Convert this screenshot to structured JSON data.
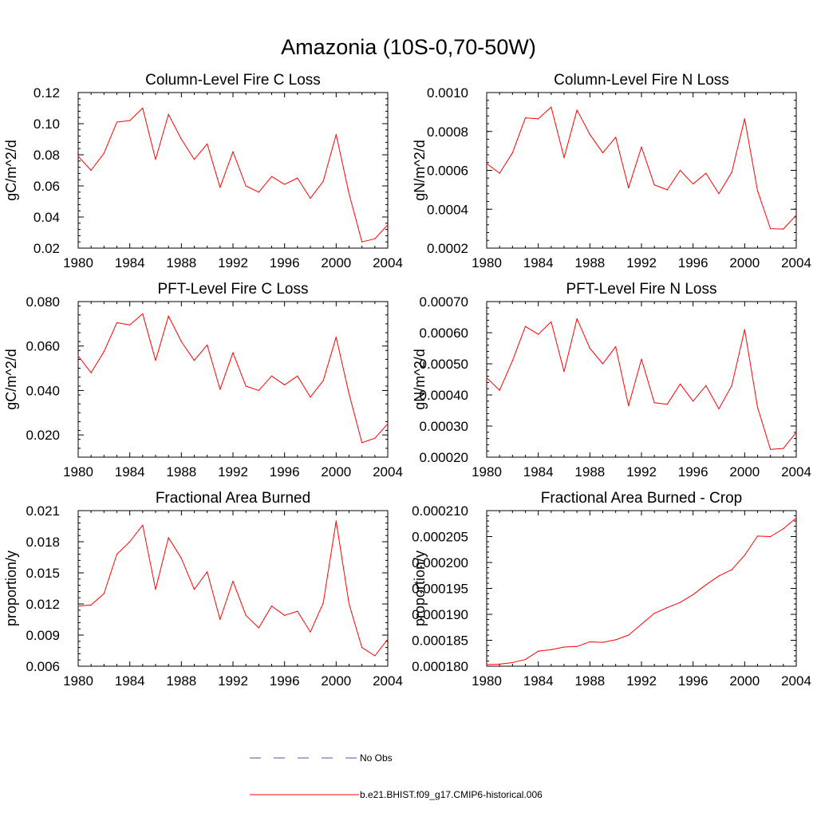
{
  "page": {
    "title": "Amazonia (10S-0,70-50W)"
  },
  "legend": [
    {
      "label": "No Obs",
      "style": "dashed",
      "color": "#4a5aa8"
    },
    {
      "label": "b.e21.BHIST.f09_g17.CMIP6-historical.006",
      "style": "solid",
      "color": "#ff0000"
    }
  ],
  "chart_data": [
    {
      "type": "line",
      "title": "Column-Level Fire C Loss",
      "xlabel": "",
      "ylabel": "gC/m^2/d",
      "xlim": [
        1980,
        2004
      ],
      "ylim": [
        0.02,
        0.12
      ],
      "xticks": [
        1980,
        1984,
        1988,
        1992,
        1996,
        2000,
        2004
      ],
      "yticks": [
        0.02,
        0.04,
        0.06,
        0.08,
        0.1,
        0.12
      ],
      "yticklabels": [
        "0.02",
        "0.04",
        "0.06",
        "0.08",
        "0.10",
        "0.12"
      ],
      "x": [
        1980,
        1981,
        1982,
        1983,
        1984,
        1985,
        1986,
        1987,
        1988,
        1989,
        1990,
        1991,
        1992,
        1993,
        1994,
        1995,
        1996,
        1997,
        1998,
        1999,
        2000,
        2001,
        2002,
        2003,
        2004
      ],
      "series": [
        {
          "name": "b.e21.BHIST.f09_g17.CMIP6-historical.006",
          "color": "#ff0000",
          "values": [
            0.079,
            0.07,
            0.081,
            0.101,
            0.102,
            0.11,
            0.077,
            0.106,
            0.09,
            0.077,
            0.087,
            0.059,
            0.082,
            0.06,
            0.056,
            0.066,
            0.061,
            0.065,
            0.052,
            0.063,
            0.093,
            0.055,
            0.024,
            0.026,
            0.035
          ]
        }
      ]
    },
    {
      "type": "line",
      "title": "Column-Level Fire N Loss",
      "xlabel": "",
      "ylabel": "gN/m^2/d",
      "xlim": [
        1980,
        2004
      ],
      "ylim": [
        0.0002,
        0.001
      ],
      "xticks": [
        1980,
        1984,
        1988,
        1992,
        1996,
        2000,
        2004
      ],
      "yticks": [
        0.0002,
        0.0004,
        0.0006,
        0.0008,
        0.001
      ],
      "yticklabels": [
        "0.0002",
        "0.0004",
        "0.0006",
        "0.0008",
        "0.0010"
      ],
      "x": [
        1980,
        1981,
        1982,
        1983,
        1984,
        1985,
        1986,
        1987,
        1988,
        1989,
        1990,
        1991,
        1992,
        1993,
        1994,
        1995,
        1996,
        1997,
        1998,
        1999,
        2000,
        2001,
        2002,
        2003,
        2004
      ],
      "series": [
        {
          "name": "b.e21.BHIST.f09_g17.CMIP6-historical.006",
          "color": "#ff0000",
          "values": [
            0.000635,
            0.000585,
            0.00069,
            0.00087,
            0.000865,
            0.000925,
            0.000665,
            0.00091,
            0.000785,
            0.00069,
            0.00077,
            0.00051,
            0.00072,
            0.000525,
            0.0005,
            0.0006,
            0.00053,
            0.000585,
            0.00048,
            0.00059,
            0.000865,
            0.000495,
            0.0003,
            0.000298,
            0.00037
          ]
        }
      ]
    },
    {
      "type": "line",
      "title": "PFT-Level Fire C Loss",
      "xlabel": "",
      "ylabel": "gC/m^2/d",
      "xlim": [
        1980,
        2004
      ],
      "ylim": [
        0.01,
        0.08
      ],
      "xticks": [
        1980,
        1984,
        1988,
        1992,
        1996,
        2000,
        2004
      ],
      "yticks": [
        0.02,
        0.04,
        0.06,
        0.08
      ],
      "yticklabels": [
        "0.020",
        "0.040",
        "0.060",
        "0.080"
      ],
      "x": [
        1980,
        1981,
        1982,
        1983,
        1984,
        1985,
        1986,
        1987,
        1988,
        1989,
        1990,
        1991,
        1992,
        1993,
        1994,
        1995,
        1996,
        1997,
        1998,
        1999,
        2000,
        2001,
        2002,
        2003,
        2004
      ],
      "series": [
        {
          "name": "b.e21.BHIST.f09_g17.CMIP6-historical.006",
          "color": "#ff0000",
          "values": [
            0.0555,
            0.048,
            0.0575,
            0.0705,
            0.0695,
            0.0745,
            0.0535,
            0.0735,
            0.062,
            0.0535,
            0.0605,
            0.0405,
            0.057,
            0.042,
            0.04,
            0.0465,
            0.0425,
            0.0465,
            0.037,
            0.0445,
            0.064,
            0.0385,
            0.0165,
            0.0185,
            0.025
          ]
        }
      ]
    },
    {
      "type": "line",
      "title": "PFT-Level Fire N Loss",
      "xlabel": "",
      "ylabel": "gN/m^2/d",
      "xlim": [
        1980,
        2004
      ],
      "ylim": [
        0.0002,
        0.0007
      ],
      "xticks": [
        1980,
        1984,
        1988,
        1992,
        1996,
        2000,
        2004
      ],
      "yticks": [
        0.0002,
        0.0003,
        0.0004,
        0.0005,
        0.0006,
        0.0007
      ],
      "yticklabels": [
        "0.00020",
        "0.00030",
        "0.00040",
        "0.00050",
        "0.00060",
        "0.00070"
      ],
      "x": [
        1980,
        1981,
        1982,
        1983,
        1984,
        1985,
        1986,
        1987,
        1988,
        1989,
        1990,
        1991,
        1992,
        1993,
        1994,
        1995,
        1996,
        1997,
        1998,
        1999,
        2000,
        2001,
        2002,
        2003,
        2004
      ],
      "series": [
        {
          "name": "b.e21.BHIST.f09_g17.CMIP6-historical.006",
          "color": "#ff0000",
          "values": [
            0.000455,
            0.000415,
            0.00051,
            0.00062,
            0.000595,
            0.000635,
            0.000475,
            0.000645,
            0.00055,
            0.0005,
            0.000555,
            0.000365,
            0.000515,
            0.000375,
            0.00037,
            0.000435,
            0.00038,
            0.00043,
            0.000355,
            0.00043,
            0.00061,
            0.00036,
            0.000225,
            0.000228,
            0.00028
          ]
        }
      ]
    },
    {
      "type": "line",
      "title": "Fractional Area Burned",
      "xlabel": "",
      "ylabel": "proportion/y",
      "xlim": [
        1980,
        2004
      ],
      "ylim": [
        0.006,
        0.021
      ],
      "xticks": [
        1980,
        1984,
        1988,
        1992,
        1996,
        2000,
        2004
      ],
      "yticks": [
        0.006,
        0.009,
        0.012,
        0.015,
        0.018,
        0.021
      ],
      "yticklabels": [
        "0.006",
        "0.009",
        "0.012",
        "0.015",
        "0.018",
        "0.021"
      ],
      "x": [
        1980,
        1981,
        1982,
        1983,
        1984,
        1985,
        1986,
        1987,
        1988,
        1989,
        1990,
        1991,
        1992,
        1993,
        1994,
        1995,
        1996,
        1997,
        1998,
        1999,
        2000,
        2001,
        2002,
        2003,
        2004
      ],
      "series": [
        {
          "name": "b.e21.BHIST.f09_g17.CMIP6-historical.006",
          "color": "#ff0000",
          "values": [
            0.0118,
            0.0119,
            0.013,
            0.0168,
            0.018,
            0.0196,
            0.0134,
            0.0184,
            0.0164,
            0.0134,
            0.0151,
            0.0105,
            0.0142,
            0.0109,
            0.0097,
            0.0118,
            0.0109,
            0.0113,
            0.0093,
            0.0121,
            0.02,
            0.012,
            0.0078,
            0.007,
            0.0086
          ]
        }
      ]
    },
    {
      "type": "line",
      "title": "Fractional Area Burned - Crop",
      "xlabel": "",
      "ylabel": "proportion/y",
      "xlim": [
        1980,
        2004
      ],
      "ylim": [
        0.00018,
        0.00021
      ],
      "xticks": [
        1980,
        1984,
        1988,
        1992,
        1996,
        2000,
        2004
      ],
      "yticks": [
        0.00018,
        0.000185,
        0.00019,
        0.000195,
        0.0002,
        0.000205,
        0.00021
      ],
      "yticklabels": [
        "0.000180",
        "0.000185",
        "0.000190",
        "0.000195",
        "0.000200",
        "0.000205",
        "0.000210"
      ],
      "x": [
        1980,
        1981,
        1982,
        1983,
        1984,
        1985,
        1986,
        1987,
        1988,
        1989,
        1990,
        1991,
        1992,
        1993,
        1994,
        1995,
        1996,
        1997,
        1998,
        1999,
        2000,
        2001,
        2002,
        2003,
        2004
      ],
      "series": [
        {
          "name": "b.e21.BHIST.f09_g17.CMIP6-historical.006",
          "color": "#ff0000",
          "values": [
            0.0001803,
            0.0001804,
            0.0001807,
            0.0001813,
            0.0001829,
            0.0001832,
            0.0001837,
            0.0001838,
            0.0001847,
            0.0001846,
            0.0001851,
            0.000186,
            0.0001881,
            0.0001902,
            0.0001913,
            0.0001923,
            0.0001938,
            0.0001957,
            0.0001974,
            0.0001986,
            0.0002014,
            0.0002051,
            0.000205,
            0.0002065,
            0.0002086
          ]
        }
      ]
    }
  ]
}
